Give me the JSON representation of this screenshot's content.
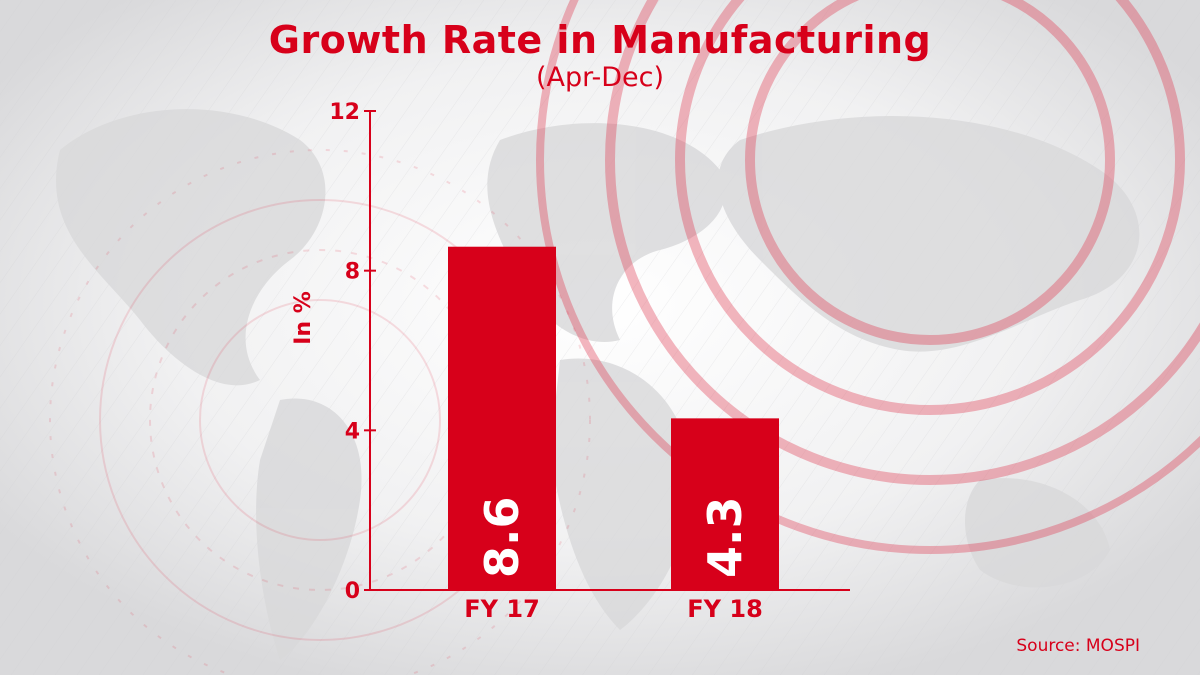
{
  "chart_data": {
    "type": "bar",
    "title": "Growth Rate in Manufacturing",
    "subtitle": "(Apr-Dec)",
    "ylabel": "In %",
    "xlabel": "",
    "categories": [
      "FY 17",
      "FY 18"
    ],
    "values": [
      8.6,
      4.3
    ],
    "data_labels": [
      "8.6",
      "4.3"
    ],
    "yticks": [
      "0",
      "4",
      "8",
      "12"
    ],
    "ylim": [
      0,
      12
    ],
    "grid": false,
    "legend": "none",
    "bar_color": "#d7001a",
    "source": "Source: MOSPI"
  },
  "colors": {
    "accent": "#d7001a",
    "background": "#e9e9ea"
  }
}
